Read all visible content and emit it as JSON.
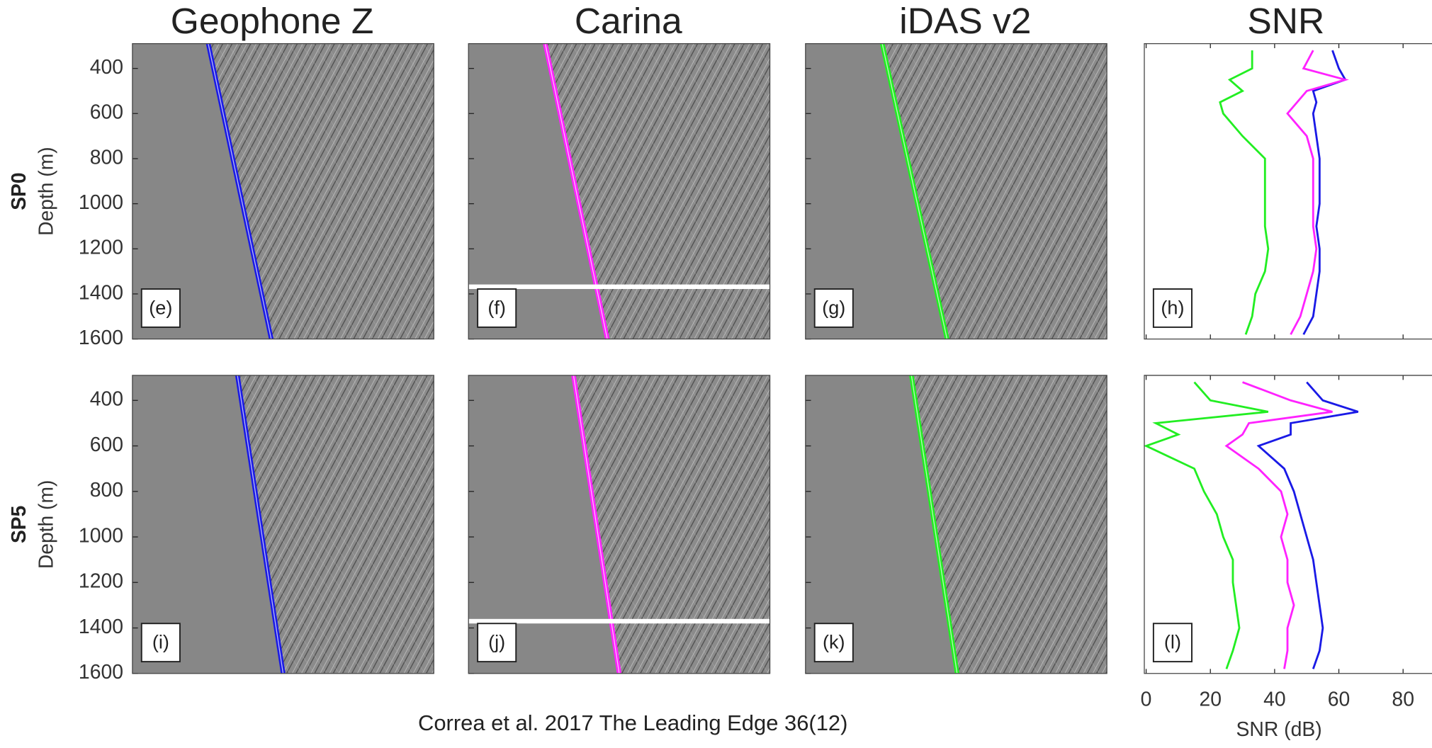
{
  "figure": {
    "columns": [
      "Geophone Z",
      "Carina",
      "iDAS v2",
      "SNR"
    ],
    "rows": [
      {
        "name": "SP0",
        "depth_label": "Depth (m)",
        "panels": [
          "(e)",
          "(f)",
          "(g)",
          "(h)"
        ]
      },
      {
        "name": "SP5",
        "depth_label": "Depth (m)",
        "panels": [
          "(i)",
          "(j)",
          "(k)",
          "(l)"
        ]
      }
    ],
    "citation": "Correa et al. 2017 The Leading Edge 36(12)"
  },
  "depth_axis": {
    "ylim": [
      290,
      1600
    ],
    "yticks": [
      400,
      600,
      800,
      1000,
      1200,
      1400,
      1600
    ]
  },
  "chart_data": [
    {
      "type": "line",
      "ylim": [
        290,
        1600
      ],
      "xlim": [
        0,
        89
      ],
      "xticks": [
        0,
        20,
        40,
        60,
        80
      ],
      "y": [
        320,
        400,
        450,
        500,
        550,
        600,
        700,
        800,
        900,
        1000,
        1100,
        1200,
        1300,
        1400,
        1500,
        1580
      ],
      "series": [
        {
          "color": "#1a1ae6",
          "values": [
            58,
            60,
            62,
            52,
            53,
            52,
            53,
            54,
            54,
            54,
            53,
            54,
            54,
            53,
            52,
            49
          ]
        },
        {
          "color": "#ff22ff",
          "values": [
            52,
            49,
            62,
            50,
            47,
            44,
            50,
            52,
            52,
            52,
            52,
            53,
            52,
            50,
            48,
            45
          ]
        },
        {
          "color": "#22ee22",
          "values": [
            33,
            33,
            26,
            30,
            23,
            24,
            30,
            37,
            37,
            37,
            37,
            38,
            37,
            34,
            33,
            31
          ]
        }
      ]
    },
    {
      "type": "line",
      "ylim": [
        290,
        1600
      ],
      "xlim": [
        0,
        89
      ],
      "xticks": [
        0,
        20,
        40,
        60,
        80
      ],
      "xlabel": "SNR (dB)",
      "y": [
        320,
        400,
        450,
        500,
        550,
        600,
        700,
        800,
        900,
        1000,
        1100,
        1200,
        1300,
        1400,
        1500,
        1580
      ],
      "series": [
        {
          "color": "#1a1ae6",
          "values": [
            50,
            55,
            66,
            45,
            45,
            35,
            43,
            46,
            48,
            50,
            52,
            53,
            54,
            55,
            54,
            52
          ]
        },
        {
          "color": "#ff22ff",
          "values": [
            30,
            45,
            58,
            32,
            30,
            25,
            35,
            42,
            44,
            42,
            44,
            44,
            46,
            44,
            44,
            43
          ]
        },
        {
          "color": "#22ee22",
          "values": [
            15,
            20,
            38,
            3,
            10,
            0,
            15,
            18,
            22,
            24,
            27,
            27,
            28,
            29,
            27,
            25
          ]
        }
      ]
    }
  ]
}
